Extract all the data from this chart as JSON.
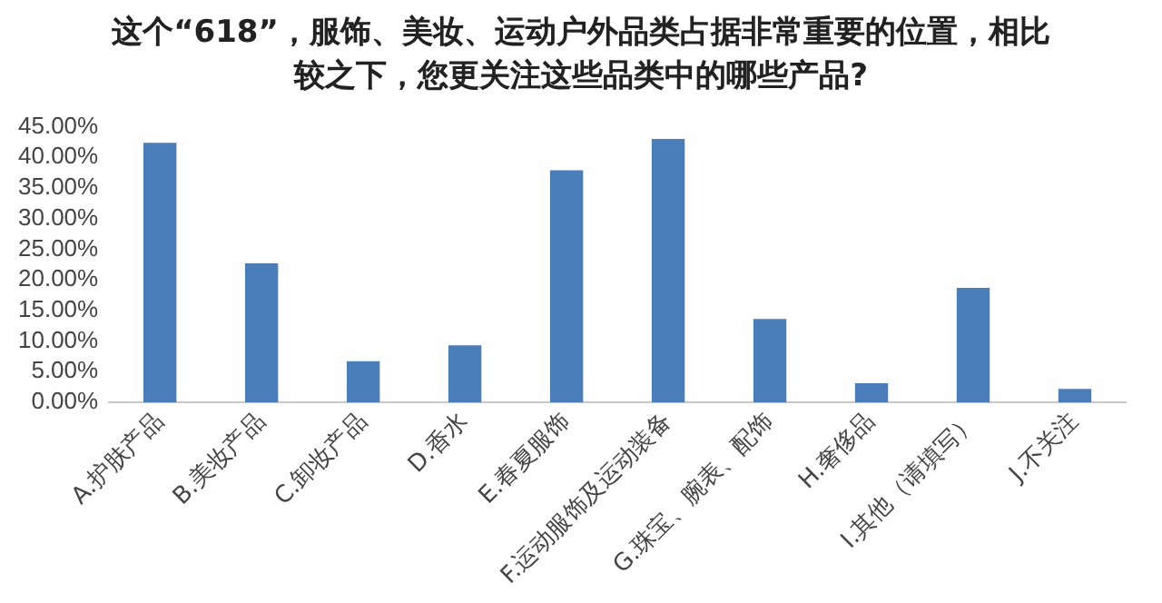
{
  "chart_data": {
    "type": "bar",
    "title": "这个“618”，服饰、美妆、运动户外品类占据非常重要的位置，相比较之下，您更关注这些品类中的哪些产品?",
    "categories": [
      "A.护肤产品",
      "B.美妆产品",
      "C.卸妆产品",
      "D.香水",
      "E.春夏服饰",
      "F.运动服饰及运动装备",
      "G.珠宝、腕表、配饰",
      "H.奢侈品",
      "I.其他（请填写）",
      "J.不关注"
    ],
    "values": [
      42.4,
      22.7,
      6.7,
      9.3,
      37.9,
      43.0,
      13.6,
      3.1,
      18.7,
      2.2
    ],
    "color": "#4a7ebb",
    "ylim": [
      0,
      45
    ],
    "yticks": [
      {
        "value": 0,
        "label": "0.00%"
      },
      {
        "value": 5,
        "label": "5.00%"
      },
      {
        "value": 10,
        "label": "10.00%"
      },
      {
        "value": 15,
        "label": "15.00%"
      },
      {
        "value": 20,
        "label": "20.00%"
      },
      {
        "value": 25,
        "label": "25.00%"
      },
      {
        "value": 30,
        "label": "30.00%"
      },
      {
        "value": 35,
        "label": "35.00%"
      },
      {
        "value": 40,
        "label": "40.00%"
      },
      {
        "value": 45,
        "label": "45.00%"
      }
    ],
    "grid": false,
    "legend": false
  }
}
